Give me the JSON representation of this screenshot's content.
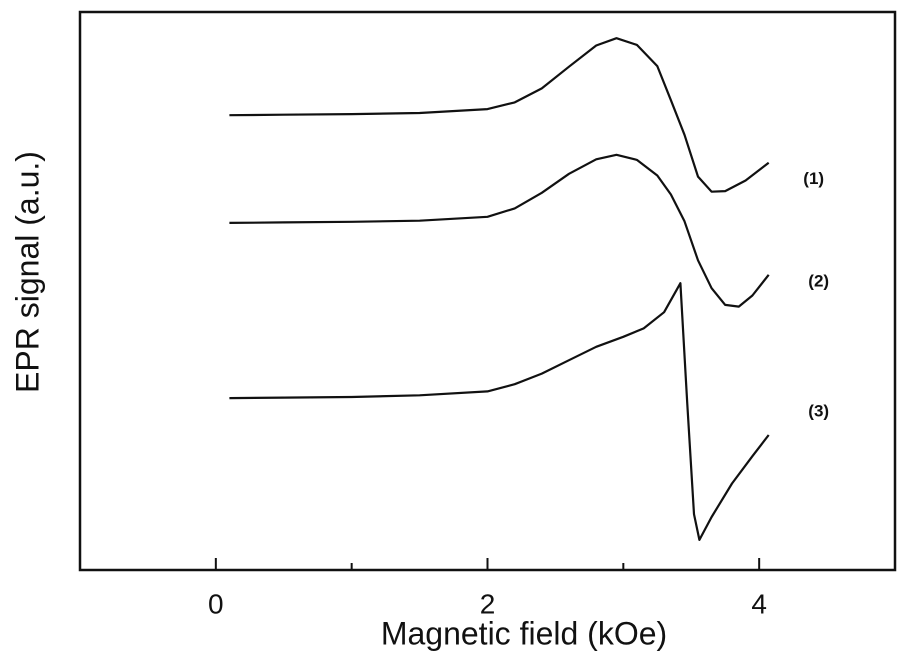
{
  "chart_data": {
    "type": "line",
    "xlabel": "Magnetic field (kOe)",
    "ylabel": "EPR signal (a.u.)",
    "xlim": [
      -1,
      5
    ],
    "xticks": [
      0,
      2,
      4
    ],
    "xminorticks": [
      1,
      3
    ],
    "ylim": [
      0,
      100
    ],
    "color": "#111111",
    "series": [
      {
        "name": "(1)",
        "x": [
          0.1,
          0.5,
          1.0,
          1.5,
          2.0,
          2.2,
          2.4,
          2.6,
          2.8,
          2.95,
          3.1,
          3.25,
          3.35,
          3.45,
          3.55,
          3.65,
          3.75,
          3.9,
          4.07
        ],
        "values": [
          81.5,
          81.6,
          81.7,
          81.9,
          82.6,
          83.8,
          86.3,
          90.2,
          94.0,
          95.3,
          94.1,
          90.3,
          84.2,
          78.0,
          70.5,
          67.8,
          67.9,
          69.8,
          73.0
        ]
      },
      {
        "name": "(2)",
        "x": [
          0.1,
          0.5,
          1.0,
          1.5,
          2.0,
          2.2,
          2.4,
          2.6,
          2.8,
          2.95,
          3.1,
          3.25,
          3.35,
          3.45,
          3.55,
          3.65,
          3.75,
          3.85,
          3.95,
          4.07
        ],
        "values": [
          62.2,
          62.3,
          62.4,
          62.6,
          63.3,
          64.8,
          67.6,
          71.0,
          73.6,
          74.4,
          73.5,
          70.7,
          67.3,
          62.5,
          55.5,
          50.5,
          47.5,
          47.2,
          49.2,
          52.9
        ]
      },
      {
        "name": "(3)",
        "x": [
          0.1,
          0.5,
          1.0,
          1.5,
          2.0,
          2.2,
          2.4,
          2.6,
          2.8,
          3.0,
          3.15,
          3.3,
          3.42,
          3.47,
          3.52,
          3.56,
          3.65,
          3.8,
          3.95,
          4.07
        ],
        "values": [
          30.8,
          30.9,
          31.0,
          31.3,
          32.0,
          33.3,
          35.2,
          37.6,
          40.0,
          41.8,
          43.3,
          46.2,
          51.4,
          30.0,
          10.0,
          5.4,
          9.5,
          15.5,
          20.4,
          24.2
        ]
      }
    ]
  }
}
